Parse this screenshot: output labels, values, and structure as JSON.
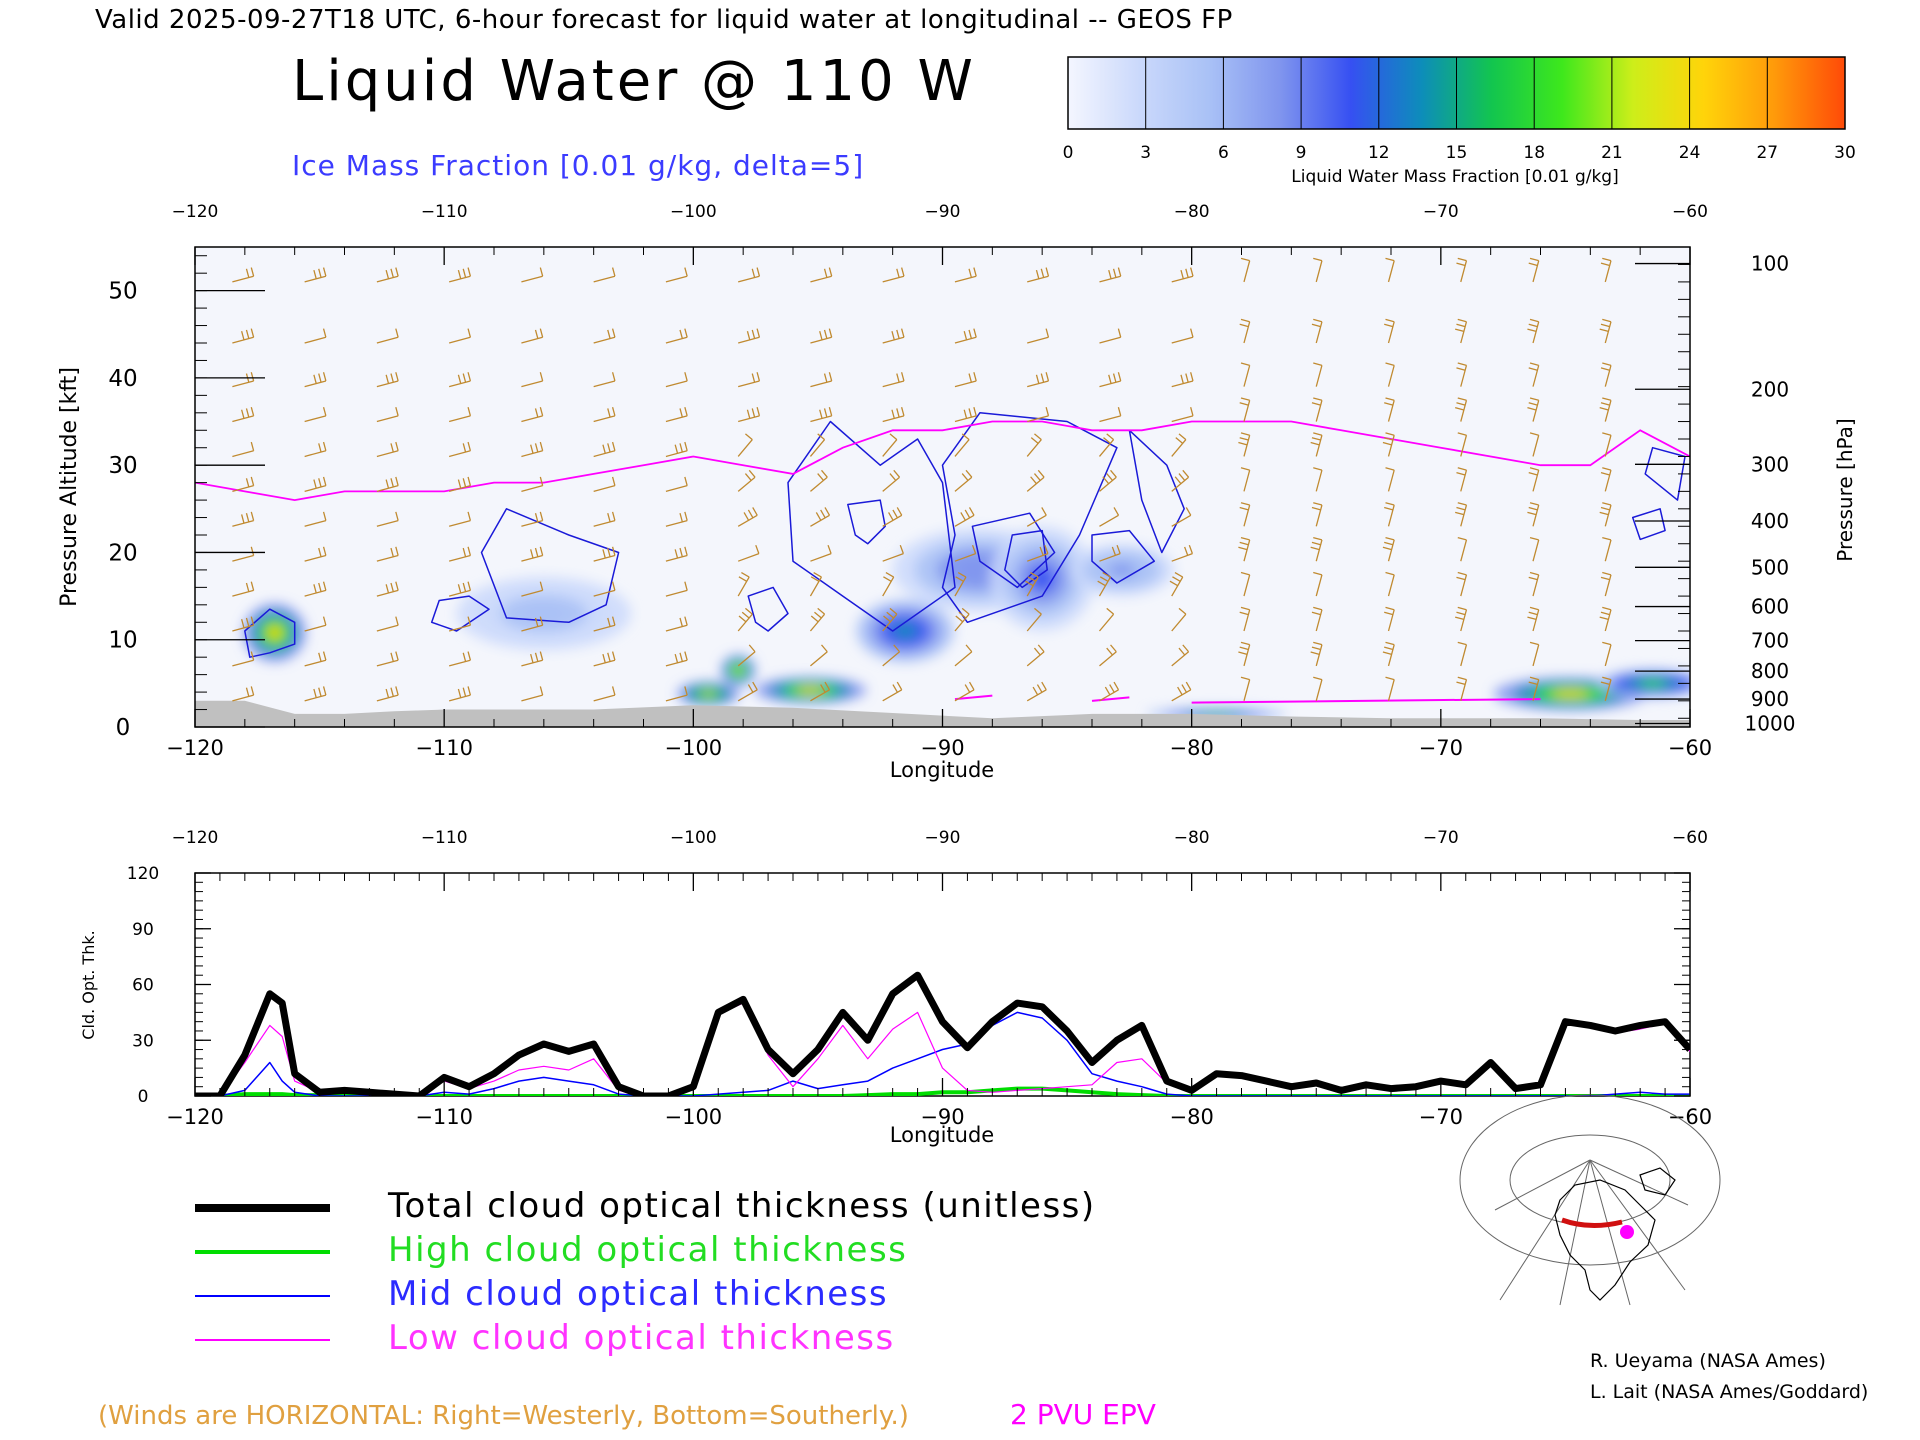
{
  "header": {
    "title_line": "Valid 2025-09-27T18 UTC, 6-hour forecast for liquid water at longitudinal -- GEOS FP",
    "main_title": "Liquid Water @ 110 W",
    "subtitle": "Ice Mass Fraction [0.01 g/kg, delta=5]"
  },
  "colorbar": {
    "ticks": [
      "0",
      "3",
      "6",
      "9",
      "12",
      "15",
      "18",
      "21",
      "24",
      "27",
      "30"
    ],
    "label": "Liquid Water Mass Fraction [0.01 g/kg]",
    "colors": [
      "#f4f6ff",
      "#cbd9fb",
      "#a9c1f6",
      "#8095ee",
      "#3650f2",
      "#0d8dba",
      "#12c54f",
      "#3ee81c",
      "#cdee1a",
      "#ffd40a",
      "#ff9a0a",
      "#ff4a08"
    ]
  },
  "chart_data": [
    {
      "type": "heatmap",
      "description_units": "liquid water mass fraction cross-section with ice contours and wind barbs",
      "xlabel": "Longitude",
      "ylabel": "Pressure Altitude [kft]",
      "ylabel_right": "Pressure [hPa]",
      "xlim": [
        -120,
        -60
      ],
      "ylim": [
        0,
        55
      ],
      "x_ticks": [
        "-120",
        "-110",
        "-100",
        "-90",
        "-80",
        "-70",
        "-60"
      ],
      "y_ticks": [
        "0",
        "10",
        "20",
        "30",
        "40",
        "50"
      ],
      "pressure_ticks": [
        {
          "label": "100",
          "kft": 53.1
        },
        {
          "label": "200",
          "kft": 38.7
        },
        {
          "label": "300",
          "kft": 30.1
        },
        {
          "label": "400",
          "kft": 23.6
        },
        {
          "label": "500",
          "kft": 18.3
        },
        {
          "label": "600",
          "kft": 13.8
        },
        {
          "label": "700",
          "kft": 9.9
        },
        {
          "label": "800",
          "kft": 6.4
        },
        {
          "label": "900",
          "kft": 3.2
        },
        {
          "label": "1000",
          "kft": 0.4
        }
      ],
      "liquid_water_blobs": [
        {
          "lon": -116.8,
          "kft": 10.8,
          "value": 24,
          "rlon": 0.9,
          "rkft": 2.8
        },
        {
          "lon": -106,
          "kft": 13,
          "value": 6,
          "rlon": 2.5,
          "rkft": 3.5
        },
        {
          "lon": -99.4,
          "kft": 3.8,
          "value": 22,
          "rlon": 0.9,
          "rkft": 1.2
        },
        {
          "lon": -98.2,
          "kft": 6.5,
          "value": 23,
          "rlon": 0.5,
          "rkft": 1.5
        },
        {
          "lon": -95.3,
          "kft": 4.2,
          "value": 25,
          "rlon": 1.6,
          "rkft": 1.3
        },
        {
          "lon": -91.5,
          "kft": 11,
          "value": 13,
          "rlon": 1.4,
          "rkft": 3
        },
        {
          "lon": -88.5,
          "kft": 18,
          "value": 9,
          "rlon": 2.5,
          "rkft": 4
        },
        {
          "lon": -86,
          "kft": 17,
          "value": 11,
          "rlon": 1.5,
          "rkft": 5
        },
        {
          "lon": -82.8,
          "kft": 18,
          "value": 8,
          "rlon": 1.5,
          "rkft": 2.5
        },
        {
          "lon": -79,
          "kft": 1.5,
          "value": 16,
          "rlon": 2,
          "rkft": 0.6
        },
        {
          "lon": -64.8,
          "kft": 3.8,
          "value": 24,
          "rlon": 2.2,
          "rkft": 1.6
        },
        {
          "lon": -61.5,
          "kft": 5,
          "value": 18,
          "rlon": 1.6,
          "rkft": 1.4
        }
      ],
      "epv_2pvu": {
        "lon": [
          -120,
          -118,
          -116,
          -114,
          -112,
          -110,
          -108,
          -106,
          -104,
          -102,
          -100,
          -98,
          -96,
          -94,
          -92,
          -90,
          -88,
          -86,
          -84,
          -82,
          -80,
          -78,
          -76,
          -74,
          -72,
          -70,
          -68,
          -66,
          -64,
          -62,
          -60
        ],
        "kft": [
          28,
          27,
          26,
          27,
          27,
          27,
          28,
          28,
          29,
          30,
          31,
          30,
          29,
          32,
          34,
          34,
          35,
          35,
          34,
          34,
          35,
          35,
          35,
          34,
          33,
          32,
          31,
          30,
          30,
          34,
          31
        ]
      },
      "terrain": {
        "lon": [
          -120,
          -118,
          -116,
          -114,
          -112,
          -110,
          -108,
          -104,
          -100,
          -96,
          -92,
          -88,
          -84,
          -80,
          -76,
          -72,
          -70,
          -66,
          -62,
          -60
        ],
        "kft": [
          3,
          3,
          1.5,
          1.5,
          1.8,
          2,
          2,
          2,
          2.5,
          2.2,
          1.6,
          1,
          1.5,
          1.5,
          1.2,
          1,
          1,
          1,
          0.8,
          0.8
        ]
      },
      "legend_labels": [
        "Winds are HORIZONTAL: Right=Westerly, Bottom=Southerly.",
        "2 PVU EPV"
      ]
    },
    {
      "type": "line",
      "xlabel": "Longitude",
      "ylabel": "Cld. Opt. Thk.",
      "xlim": [
        -120,
        -60
      ],
      "ylim": [
        0,
        120
      ],
      "x_ticks": [
        "-120",
        "-110",
        "-100",
        "-90",
        "-80",
        "-70",
        "-60"
      ],
      "y_ticks": [
        "0",
        "30",
        "60",
        "90",
        "120"
      ],
      "x": [
        -120,
        -119,
        -118,
        -117,
        -116.5,
        -116,
        -115,
        -114,
        -113,
        -112,
        -111,
        -110,
        -109,
        -108,
        -107,
        -106,
        -105,
        -104,
        -103,
        -102,
        -101,
        -100,
        -99,
        -98,
        -97,
        -96,
        -95,
        -94,
        -93,
        -92,
        -91,
        -90,
        -89,
        -88,
        -87,
        -86,
        -85,
        -84,
        -83,
        -82,
        -81,
        -80,
        -79,
        -78,
        -77,
        -76,
        -75,
        -74,
        -73,
        -72,
        -71,
        -70,
        -69,
        -68,
        -67,
        -66,
        -65,
        -64,
        -63,
        -62,
        -61,
        -60
      ],
      "series": [
        {
          "name": "Total cloud optical thickness (unitless)",
          "color": "#000000",
          "values": [
            0,
            0,
            22,
            55,
            50,
            12,
            2,
            3,
            2,
            1,
            0,
            10,
            5,
            12,
            22,
            28,
            24,
            28,
            5,
            0,
            0,
            5,
            45,
            52,
            25,
            12,
            25,
            45,
            30,
            55,
            65,
            40,
            26,
            40,
            50,
            48,
            35,
            18,
            30,
            38,
            8,
            3,
            12,
            11,
            8,
            5,
            7,
            3,
            6,
            4,
            5,
            8,
            6,
            18,
            4,
            6,
            40,
            38,
            35,
            38,
            40,
            25
          ]
        },
        {
          "name": "High cloud optical thickness",
          "color": "#00dd00",
          "values": [
            0,
            0,
            1,
            1,
            1,
            0.5,
            0.5,
            0,
            0,
            0,
            0,
            0,
            0,
            0,
            0,
            0,
            0,
            0,
            0,
            0,
            0,
            0,
            0,
            0,
            0,
            0,
            0,
            0,
            0.5,
            1,
            1,
            2,
            2,
            3,
            4,
            4,
            3,
            2,
            1,
            0.5,
            0,
            0,
            0,
            0,
            0,
            0,
            0,
            0,
            0,
            0,
            0,
            0,
            0,
            0,
            0,
            0,
            0,
            0,
            0,
            0,
            0,
            0
          ]
        },
        {
          "name": "Mid cloud optical thickness",
          "color": "#0000ff",
          "values": [
            0,
            0,
            3,
            18,
            8,
            2,
            0,
            0,
            0,
            0,
            0,
            2,
            1,
            4,
            8,
            10,
            8,
            6,
            1,
            0,
            0,
            0,
            1,
            2,
            3,
            8,
            4,
            6,
            8,
            15,
            20,
            25,
            28,
            38,
            45,
            42,
            30,
            12,
            8,
            5,
            1,
            0,
            0,
            0,
            0,
            0,
            0,
            0,
            0,
            0,
            0,
            0,
            0,
            0,
            0,
            0,
            0,
            0,
            1,
            2,
            1,
            1
          ]
        },
        {
          "name": "Low cloud optical thickness",
          "color": "#ff00ff",
          "values": [
            0,
            0,
            18,
            38,
            32,
            8,
            2,
            3,
            2,
            1,
            0,
            8,
            4,
            8,
            14,
            16,
            14,
            20,
            3,
            0,
            0,
            5,
            44,
            50,
            22,
            5,
            20,
            38,
            20,
            36,
            45,
            15,
            3,
            2,
            3,
            4,
            5,
            6,
            18,
            20,
            7,
            3,
            12,
            11,
            8,
            5,
            7,
            3,
            6,
            4,
            5,
            8,
            6,
            18,
            4,
            6,
            39,
            37,
            34,
            36,
            39,
            24
          ]
        }
      ]
    }
  ],
  "legend": {
    "items": [
      {
        "label": "Total cloud optical thickness (unitless)",
        "color": "#000000"
      },
      {
        "label": "High cloud optical thickness",
        "color": "#00dd00"
      },
      {
        "label": "Mid cloud optical thickness",
        "color": "#0000ff"
      },
      {
        "label": "Low cloud optical thickness",
        "color": "#ff00ff"
      }
    ]
  },
  "footer": {
    "winds_note": "(Winds are HORIZONTAL: Right=Westerly, Bottom=Southerly.)",
    "epv_note": "2 PVU EPV",
    "credit1": "R. Ueyama (NASA Ames)",
    "credit2": "L. Lait (NASA Ames/Goddard)"
  },
  "colors": {
    "wind": "#c08a30",
    "ice_contour": "#1a1ad8",
    "epv": "#ff00ff",
    "terrain": "#c0c0c0",
    "subtitle": "#3b3bff",
    "winds_note": "#e0a040"
  }
}
